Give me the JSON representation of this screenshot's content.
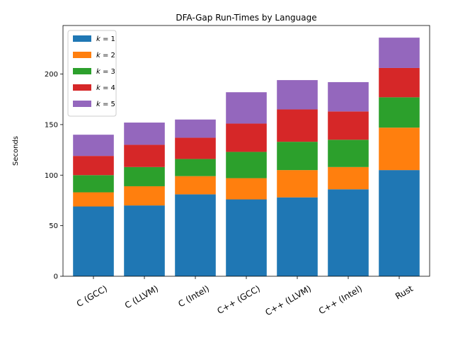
{
  "chart_data": {
    "type": "bar",
    "stacked": true,
    "title": "DFA-Gap Run-Times by Language",
    "xlabel": "",
    "ylabel": "Seconds",
    "categories": [
      "C (GCC)",
      "C (LLVM)",
      "C (Intel)",
      "C++ (GCC)",
      "C++ (LLVM)",
      "C++ (Intel)",
      "Rust"
    ],
    "yticks": [
      0,
      50,
      100,
      150,
      200
    ],
    "ylim": [
      0,
      248
    ],
    "grid": false,
    "legend_position": "top-left",
    "series": [
      {
        "name": "k = 1",
        "name_var": "k",
        "name_val": "1",
        "color": "#1f77b4",
        "values": [
          69,
          70,
          81,
          76,
          78,
          86,
          105
        ]
      },
      {
        "name": "k = 2",
        "name_var": "k",
        "name_val": "2",
        "color": "#ff7f0e",
        "values": [
          14,
          19,
          18,
          21,
          27,
          22,
          42
        ]
      },
      {
        "name": "k = 3",
        "name_var": "k",
        "name_val": "3",
        "color": "#2ca02c",
        "values": [
          17,
          19,
          17,
          26,
          28,
          27,
          30
        ]
      },
      {
        "name": "k = 4",
        "name_var": "k",
        "name_val": "4",
        "color": "#d62728",
        "values": [
          19,
          22,
          21,
          28,
          32,
          28,
          29
        ]
      },
      {
        "name": "k = 5",
        "name_var": "k",
        "name_val": "5",
        "color": "#9467bd",
        "values": [
          21,
          22,
          18,
          31,
          29,
          29,
          30
        ]
      }
    ]
  }
}
